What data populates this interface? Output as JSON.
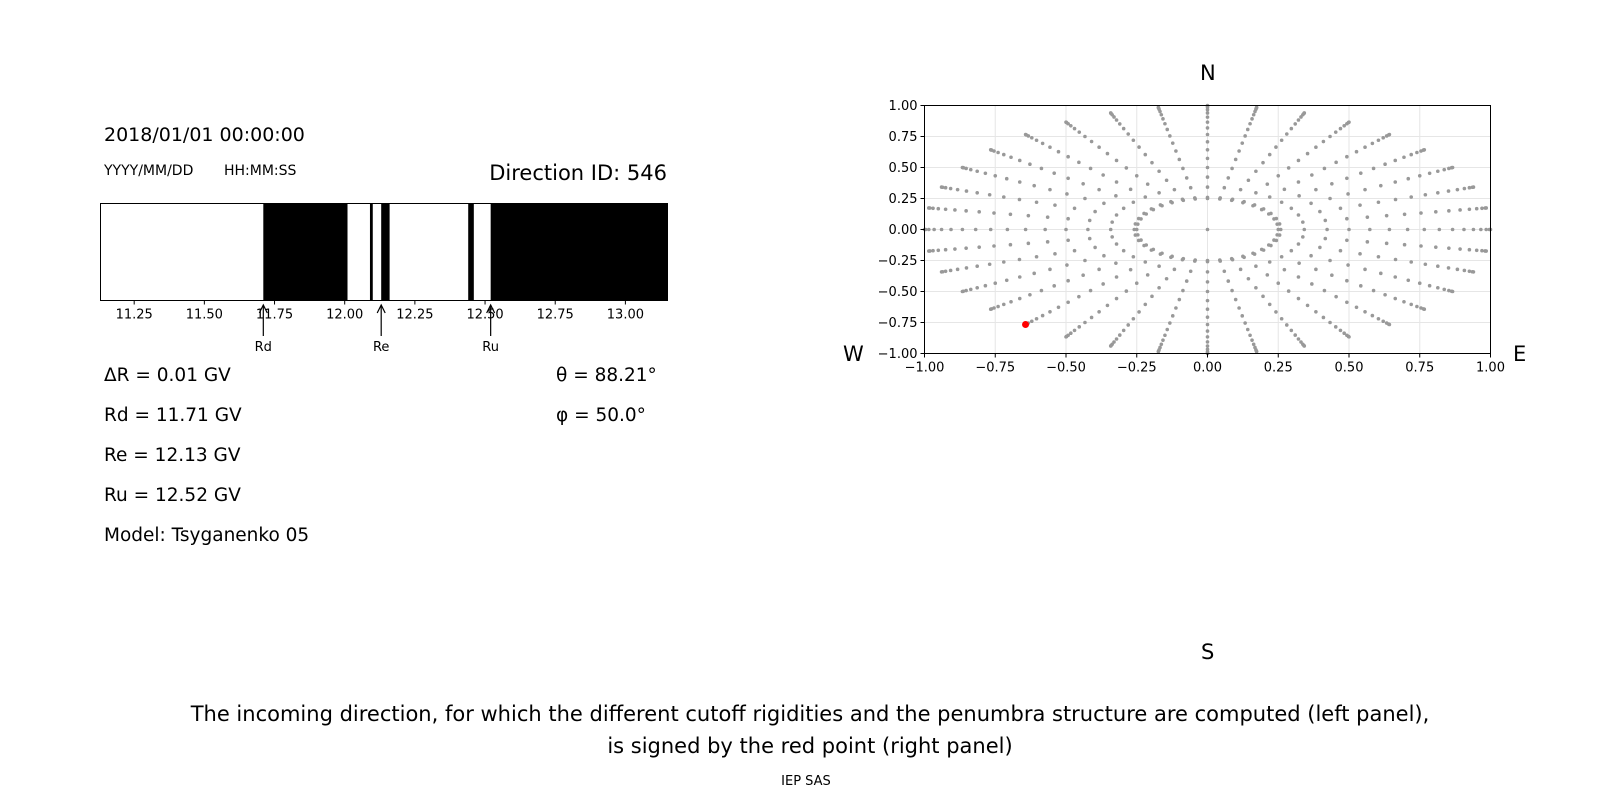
{
  "header": {
    "timestamp": "2018/01/01 00:00:00",
    "date_format": "YYYY/MM/DD",
    "time_format": "HH:MM:SS",
    "direction_id": "Direction ID: 546"
  },
  "info": {
    "delta_r": "ΔR = 0.01 GV",
    "rd": "Rd = 11.71 GV",
    "re": "Re = 12.13 GV",
    "ru": "Ru = 12.52 GV",
    "model": "Model: Tsyganenko 05",
    "theta": "θ = 88.21°",
    "phi": "φ = 50.0°"
  },
  "compass": {
    "n": "N",
    "s": "S",
    "w": "W",
    "e": "E"
  },
  "caption": {
    "line1": "The incoming direction, for which the different cutoff rigidities and the penumbra structure are computed (left panel),",
    "line2": "is signed by the red point (right panel)",
    "credit": "IEP SAS"
  },
  "colors": {
    "forbidden": "#000000",
    "allowed": "#ffffff",
    "grid_points": "#999999",
    "selected": "#ff0000"
  },
  "chart_data": [
    {
      "type": "bar",
      "name": "penumbra",
      "xlim": [
        11.13,
        13.15
      ],
      "xticks": [
        11.25,
        11.5,
        11.75,
        12.0,
        12.25,
        12.5,
        12.75,
        13.0
      ],
      "xtick_labels": [
        "11.25",
        "11.50",
        "11.75",
        "12.00",
        "12.25",
        "12.50",
        "12.75",
        "13.00"
      ],
      "forbidden_ranges": [
        [
          11.71,
          12.01
        ],
        [
          12.09,
          12.1
        ],
        [
          12.13,
          12.16
        ],
        [
          12.44,
          12.46
        ],
        [
          12.52,
          13.15
        ]
      ],
      "markers": [
        {
          "label": "Rd",
          "value": 11.71
        },
        {
          "label": "Re",
          "value": 12.13
        },
        {
          "label": "Ru",
          "value": 12.52
        }
      ]
    },
    {
      "type": "scatter",
      "name": "directions",
      "xlim": [
        -1.0,
        1.0
      ],
      "ylim": [
        -1.0,
        1.0
      ],
      "xticks": [
        -1.0,
        -0.75,
        -0.5,
        -0.25,
        0.0,
        0.25,
        0.5,
        0.75,
        1.0
      ],
      "xtick_labels": [
        "−1.00",
        "−0.75",
        "−0.50",
        "−0.25",
        "0.00",
        "0.25",
        "0.50",
        "0.75",
        "1.00"
      ],
      "yticks": [
        1.0,
        0.75,
        0.5,
        0.25,
        0.0,
        -0.25,
        -0.5,
        -0.75,
        -1.0
      ],
      "ytick_labels": [
        "1.00",
        "0.75",
        "0.50",
        "0.25",
        "0.00",
        "−0.25",
        "−0.50",
        "−0.75",
        "−1.00"
      ],
      "grid": true,
      "grid_spec": {
        "center_point": [
          0,
          0
        ],
        "inner_ring_radius": 0.25,
        "inner_ring_points": 36,
        "radial_azimuth_step_deg": 10,
        "radial_theta_start_deg": 15,
        "radial_theta_step_deg": 5,
        "radial_theta_end_deg": 90
      },
      "selected_point": {
        "x": -0.643,
        "y": -0.766
      }
    }
  ]
}
